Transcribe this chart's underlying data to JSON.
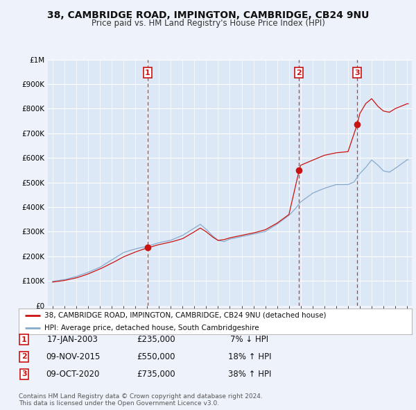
{
  "title": "38, CAMBRIDGE ROAD, IMPINGTON, CAMBRIDGE, CB24 9NU",
  "subtitle": "Price paid vs. HM Land Registry's House Price Index (HPI)",
  "bg_color": "#eef2fa",
  "plot_bg": "#dce8f5",
  "hpi_line_color": "#88aacc",
  "sale_line_color": "#cc1111",
  "vline_color": "#cc1111",
  "grid_color": "#ffffff",
  "sale_labels": [
    "1",
    "2",
    "3"
  ],
  "sale_year_floats": [
    2003.04,
    2015.86,
    2020.77
  ],
  "sale_prices": [
    235000,
    550000,
    735000
  ],
  "sale_info": [
    {
      "label": "1",
      "date": "17-JAN-2003",
      "price": "£235,000",
      "pct": "7% ↓ HPI"
    },
    {
      "label": "2",
      "date": "09-NOV-2015",
      "price": "£550,000",
      "pct": "18% ↑ HPI"
    },
    {
      "label": "3",
      "date": "09-OCT-2020",
      "price": "£735,000",
      "pct": "38% ↑ HPI"
    }
  ],
  "legend_entry1": "38, CAMBRIDGE ROAD, IMPINGTON, CAMBRIDGE, CB24 9NU (detached house)",
  "legend_entry2": "HPI: Average price, detached house, South Cambridgeshire",
  "ylim": [
    0,
    1000000
  ],
  "yticks": [
    0,
    100000,
    200000,
    300000,
    400000,
    500000,
    600000,
    700000,
    800000,
    900000,
    1000000
  ],
  "ytick_labels": [
    "£0",
    "£100K",
    "£200K",
    "£300K",
    "£400K",
    "£500K",
    "£600K",
    "£700K",
    "£800K",
    "£900K",
    "£1M"
  ],
  "copyright": "Contains HM Land Registry data © Crown copyright and database right 2024.\nThis data is licensed under the Open Government Licence v3.0.",
  "hpi_anchors_x": [
    1995,
    1996,
    1997,
    1998,
    1999,
    2000,
    2001,
    2002,
    2003,
    2004,
    2005,
    2006,
    2007,
    2007.5,
    2008,
    2008.5,
    2009,
    2009.5,
    2010,
    2011,
    2012,
    2013,
    2014,
    2015,
    2015.5,
    2016,
    2017,
    2018,
    2019,
    2020,
    2020.5,
    2021,
    2021.5,
    2022,
    2022.5,
    2023,
    2023.5,
    2024,
    2025
  ],
  "hpi_anchors_y": [
    98000,
    105000,
    118000,
    135000,
    155000,
    185000,
    215000,
    230000,
    240000,
    255000,
    265000,
    285000,
    315000,
    330000,
    310000,
    285000,
    265000,
    260000,
    270000,
    280000,
    290000,
    300000,
    330000,
    365000,
    390000,
    420000,
    455000,
    475000,
    490000,
    490000,
    500000,
    535000,
    560000,
    590000,
    570000,
    545000,
    540000,
    555000,
    590000
  ],
  "prop_anchors_x": [
    1995,
    1996,
    1997,
    1998,
    1999,
    2000,
    2001,
    2002,
    2003.04,
    2004,
    2005,
    2006,
    2007,
    2007.5,
    2008,
    2008.5,
    2009,
    2009.5,
    2010,
    2011,
    2012,
    2013,
    2014,
    2015,
    2015.86,
    2016,
    2017,
    2018,
    2019,
    2020,
    2020.77,
    2021,
    2021.5,
    2022,
    2022.5,
    2023,
    2023.5,
    2024,
    2025
  ],
  "prop_anchors_y": [
    95000,
    102000,
    112000,
    128000,
    148000,
    172000,
    198000,
    218000,
    235000,
    248000,
    258000,
    272000,
    300000,
    315000,
    300000,
    280000,
    265000,
    268000,
    275000,
    285000,
    295000,
    308000,
    335000,
    370000,
    550000,
    570000,
    590000,
    610000,
    620000,
    625000,
    735000,
    780000,
    820000,
    840000,
    810000,
    790000,
    785000,
    800000,
    820000
  ]
}
